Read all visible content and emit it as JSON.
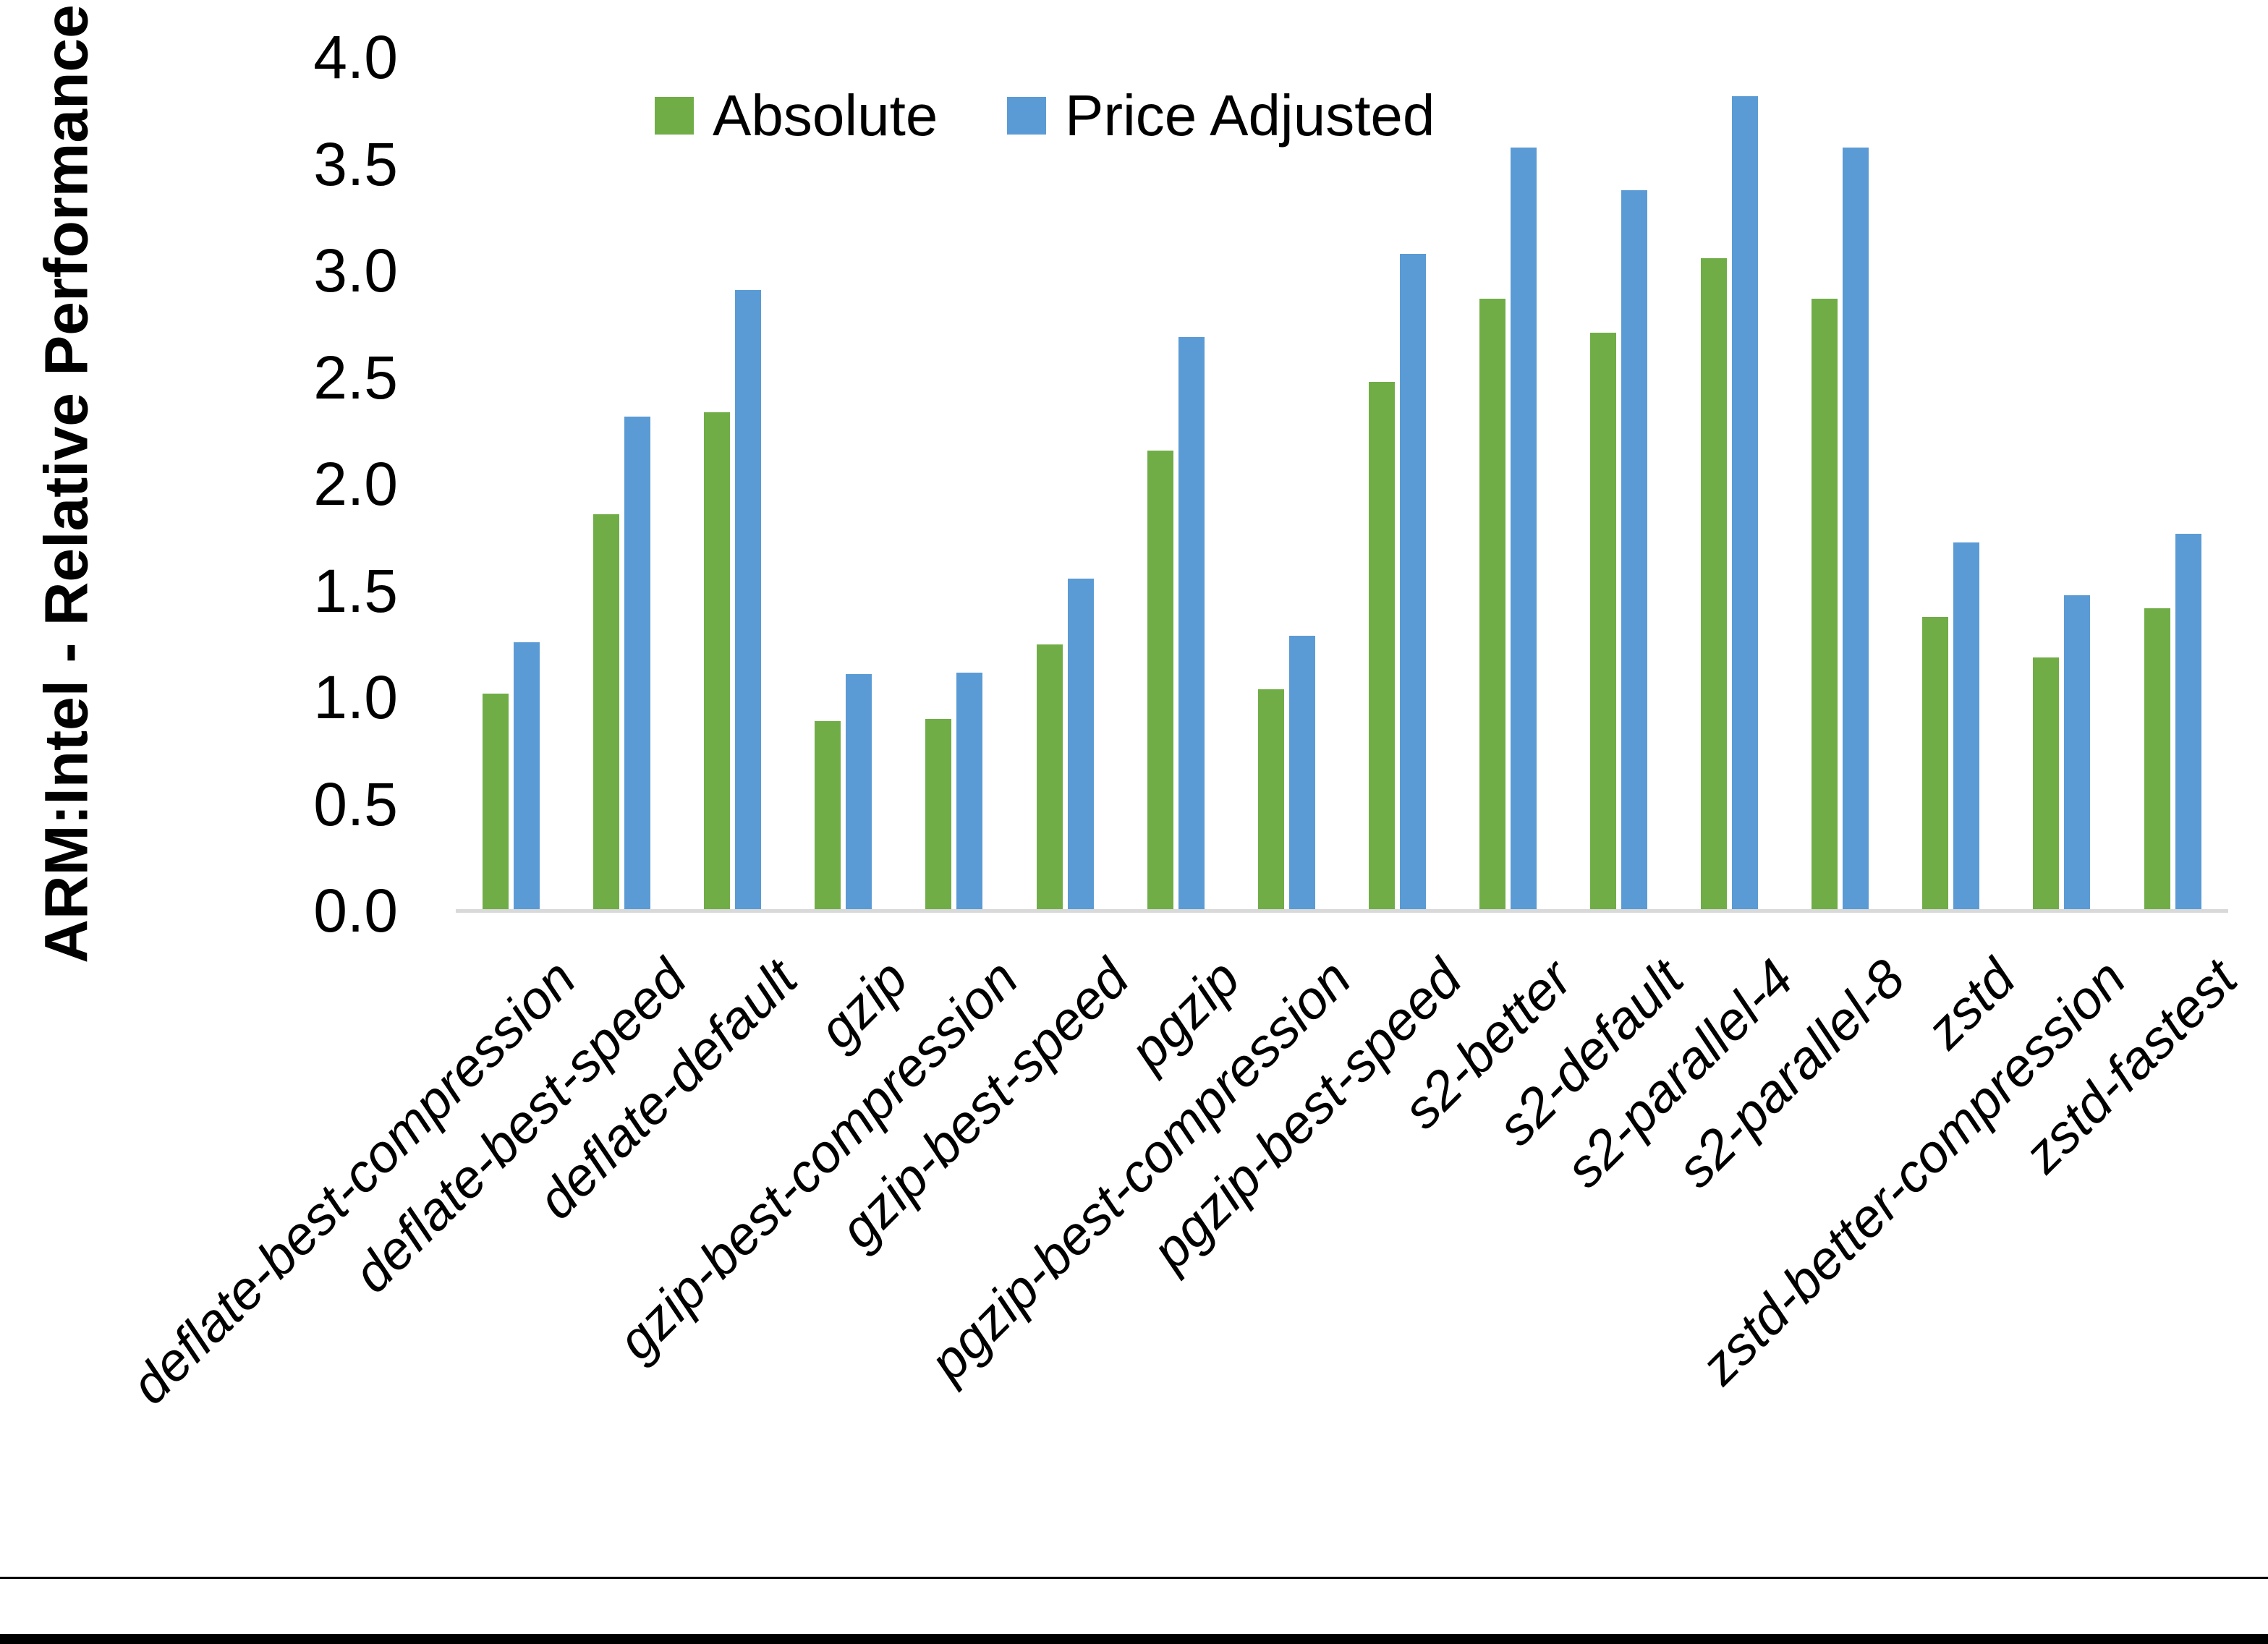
{
  "chart_data": {
    "type": "bar",
    "title": "",
    "xlabel": "",
    "ylabel": "ARM:Intel - Relative Performance",
    "ylim": [
      0.0,
      4.0
    ],
    "ytick_step": 0.5,
    "ytick_labels": [
      "0.0",
      "0.5",
      "1.0",
      "1.5",
      "2.0",
      "2.5",
      "3.0",
      "3.5",
      "4.0"
    ],
    "grid": false,
    "legend_position": "top-center",
    "categories": [
      "deflate-best-compression",
      "deflate-best-speed",
      "deflate-default",
      "gzip",
      "gzip-best-compression",
      "gzip-best-speed",
      "pgzip",
      "pgzip-best-compression",
      "pgzip-best-speed",
      "s2-better",
      "s2-default",
      "s2-parallel-4",
      "s2-parallel-8",
      "zstd",
      "zstd-better-compression",
      "zstd-fastest"
    ],
    "series": [
      {
        "name": "Absolute",
        "color": "#70AD47",
        "values": [
          1.01,
          1.85,
          2.33,
          0.88,
          0.89,
          1.24,
          2.15,
          1.03,
          2.47,
          2.86,
          2.7,
          3.05,
          2.86,
          1.37,
          1.18,
          1.41
        ]
      },
      {
        "name": "Price Adjusted",
        "color": "#5B9BD5",
        "values": [
          1.25,
          2.31,
          2.9,
          1.1,
          1.11,
          1.55,
          2.68,
          1.28,
          3.07,
          3.57,
          3.37,
          3.81,
          3.57,
          1.72,
          1.47,
          1.76
        ]
      }
    ],
    "axis_line_color": "#D9D9D9",
    "text_color": "#000000",
    "background": "#FFFFFF"
  }
}
